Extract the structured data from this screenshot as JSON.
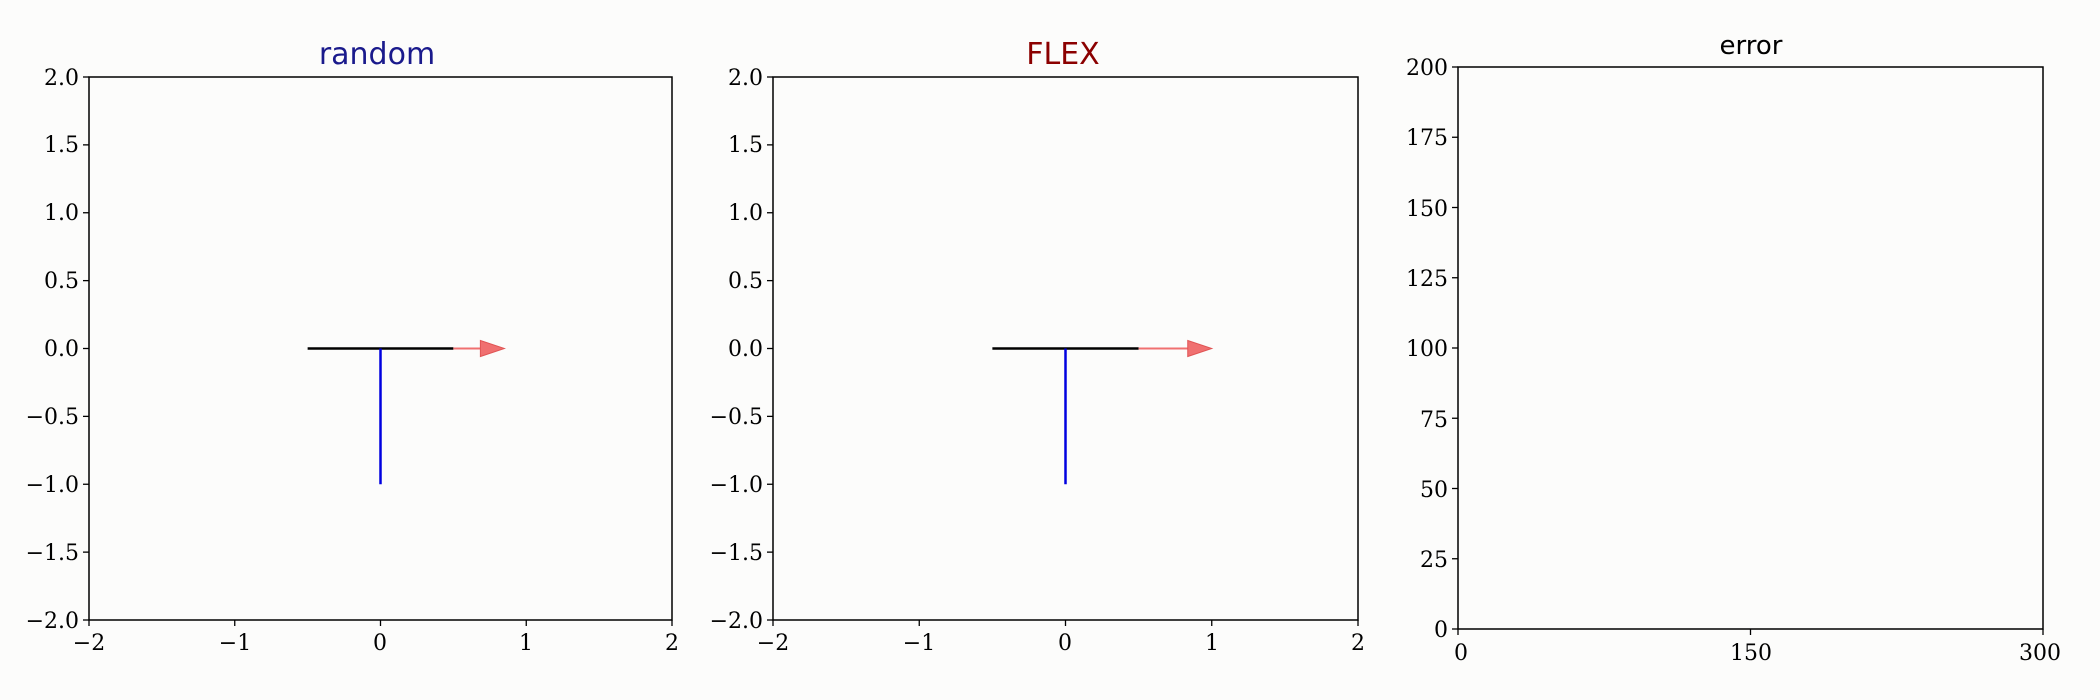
{
  "chart_data": [
    {
      "type": "line",
      "title": "random",
      "title_color": "#1a1a8c",
      "xlim": [
        -2,
        2
      ],
      "ylim": [
        -2,
        2
      ],
      "xticks": [
        -2,
        -1,
        0,
        1,
        2
      ],
      "yticks": [
        -2.0,
        -1.5,
        -1.0,
        -0.5,
        0.0,
        0.5,
        1.0,
        1.5,
        2.0
      ],
      "xtick_labels": [
        "−2",
        "−1",
        "0",
        "1",
        "2"
      ],
      "ytick_labels": [
        "−2.0",
        "−1.5",
        "−1.0",
        "−0.5",
        "0.0",
        "0.5",
        "1.0",
        "1.5",
        "2.0"
      ],
      "grid": false,
      "series": [
        {
          "x": [
            -0.5,
            0.5
          ],
          "y": [
            0,
            0
          ],
          "color": "#000000"
        },
        {
          "x": [
            0,
            0
          ],
          "y": [
            0,
            -1
          ],
          "color": "#0000e0"
        }
      ],
      "arrow": {
        "x": [
          0.5,
          0.85
        ],
        "y": [
          0,
          0
        ],
        "color": "#f07070"
      }
    },
    {
      "type": "line",
      "title": "FLEX",
      "title_color": "#8b0000",
      "xlim": [
        -2,
        2
      ],
      "ylim": [
        -2,
        2
      ],
      "xticks": [
        -2,
        -1,
        0,
        1,
        2
      ],
      "yticks": [
        -2.0,
        -1.5,
        -1.0,
        -0.5,
        0.0,
        0.5,
        1.0,
        1.5,
        2.0
      ],
      "xtick_labels": [
        "−2",
        "−1",
        "0",
        "1",
        "2"
      ],
      "ytick_labels": [
        "−2.0",
        "−1.5",
        "−1.0",
        "−0.5",
        "0.0",
        "0.5",
        "1.0",
        "1.5",
        "2.0"
      ],
      "grid": false,
      "series": [
        {
          "x": [
            -0.5,
            0.5
          ],
          "y": [
            0,
            0
          ],
          "color": "#000000"
        },
        {
          "x": [
            0,
            0
          ],
          "y": [
            0,
            -1
          ],
          "color": "#0000e0"
        }
      ],
      "arrow": {
        "x": [
          0.5,
          1.0
        ],
        "y": [
          0,
          0
        ],
        "color": "#f07070"
      }
    },
    {
      "type": "line",
      "title": "error",
      "title_color": "#000000",
      "xlim": [
        0,
        300
      ],
      "ylim": [
        0,
        200
      ],
      "xticks": [
        0,
        150,
        300
      ],
      "yticks": [
        0,
        25,
        50,
        75,
        100,
        125,
        150,
        175,
        200
      ],
      "xtick_labels": [
        "0",
        "150",
        "300"
      ],
      "ytick_labels": [
        "0",
        "25",
        "50",
        "75",
        "100",
        "125",
        "150",
        "175",
        "200"
      ],
      "grid": false,
      "series": []
    }
  ]
}
